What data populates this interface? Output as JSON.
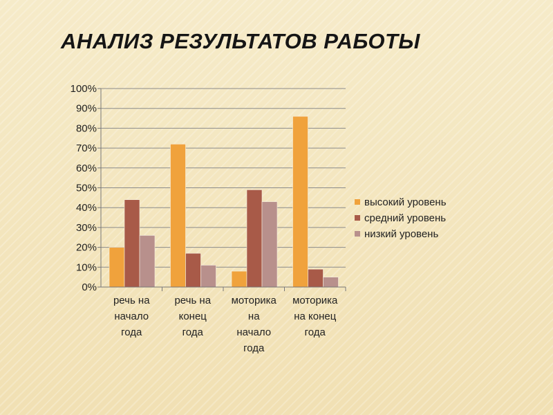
{
  "slide": {
    "title": "АНАЛИЗ РЕЗУЛЬТАТОВ РАБОТЫ"
  },
  "chart_data": {
    "type": "bar",
    "categories": [
      [
        "речь на",
        "начало",
        "года"
      ],
      [
        "речь на",
        "конец",
        "года"
      ],
      [
        "моторика",
        "на",
        "начало",
        "года"
      ],
      [
        "моторика",
        "на конец",
        "года"
      ]
    ],
    "series": [
      {
        "name": "высокий уровень",
        "color": "#f0a23c",
        "values": [
          20,
          72,
          8,
          86
        ]
      },
      {
        "name": "средний уровень",
        "color": "#a85a48",
        "values": [
          44,
          17,
          49,
          9
        ]
      },
      {
        "name": "низкий уровень",
        "color": "#b8908c",
        "values": [
          26,
          11,
          43,
          5
        ]
      }
    ],
    "y_ticks": [
      "0%",
      "10%",
      "20%",
      "30%",
      "40%",
      "50%",
      "60%",
      "70%",
      "80%",
      "90%",
      "100%"
    ],
    "ylim": [
      0,
      100
    ],
    "grid": true,
    "legend_position": "right"
  }
}
